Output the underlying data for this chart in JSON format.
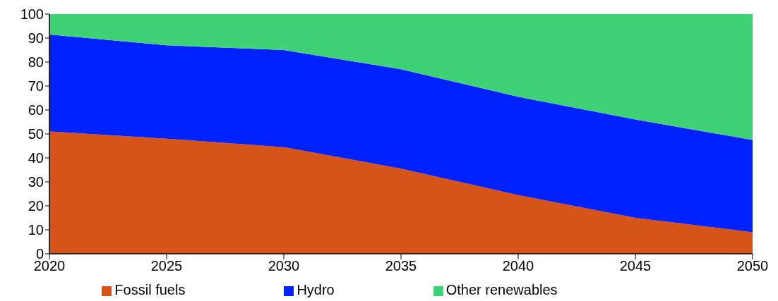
{
  "chart_data": {
    "type": "area",
    "stacked": true,
    "x": [
      2020,
      2025,
      2030,
      2035,
      2040,
      2045,
      2050
    ],
    "series": [
      {
        "name": "Fossil fuels",
        "color": "#d6531a",
        "values": [
          51,
          48,
          44.5,
          35.5,
          24.5,
          15,
          9
        ]
      },
      {
        "name": "Hydro",
        "color": "#0021ff",
        "values": [
          40.5,
          39,
          40.5,
          41.5,
          41,
          41,
          38.5
        ]
      },
      {
        "name": "Other renewables",
        "color": "#3fd175",
        "values": [
          8.5,
          13,
          15,
          23,
          34.5,
          44,
          52.5
        ]
      }
    ],
    "xlim": [
      2020,
      2050
    ],
    "xticks": [
      2020,
      2025,
      2030,
      2035,
      2040,
      2045,
      2050
    ],
    "ylim": [
      0,
      100
    ],
    "yticks": [
      0,
      10,
      20,
      30,
      40,
      50,
      60,
      70,
      80,
      90,
      100
    ],
    "grid": false,
    "legend": "bottom"
  }
}
